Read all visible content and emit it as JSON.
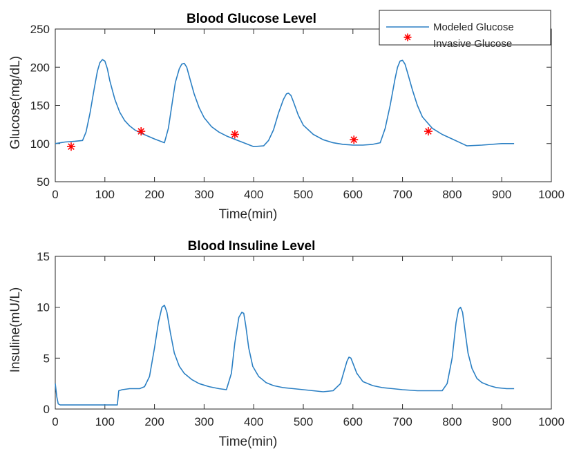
{
  "colors": {
    "model_line": "#2a7fc3",
    "marker": "#ff0000",
    "axes": "#262626"
  },
  "chart_data": [
    {
      "type": "line",
      "title": "Blood Glucose Level",
      "xlabel": "Time(min)",
      "ylabel": "Glucose(mg/dL)",
      "xlim": [
        0,
        1000
      ],
      "ylim": [
        50,
        250
      ],
      "xticks": [
        0,
        100,
        200,
        300,
        400,
        500,
        600,
        700,
        800,
        900,
        1000
      ],
      "yticks": [
        50,
        100,
        150,
        200,
        250
      ],
      "xtick_labels": [
        "0",
        "100",
        "200",
        "300",
        "400",
        "500",
        "600",
        "700",
        "800",
        "900",
        "1000"
      ],
      "ytick_labels": [
        "50",
        "100",
        "150",
        "200",
        "250"
      ],
      "grid": false,
      "legend_position": "top-right",
      "series": [
        {
          "name": "Modeled Glucose",
          "kind": "line",
          "x": [
            0,
            20,
            40,
            55,
            62,
            70,
            78,
            85,
            90,
            95,
            100,
            105,
            110,
            120,
            130,
            140,
            150,
            160,
            175,
            200,
            220,
            228,
            235,
            242,
            250,
            255,
            260,
            265,
            270,
            280,
            290,
            300,
            315,
            330,
            345,
            360,
            380,
            400,
            420,
            430,
            440,
            450,
            460,
            466,
            470,
            475,
            480,
            490,
            500,
            520,
            540,
            560,
            580,
            600,
            620,
            640,
            655,
            665,
            675,
            685,
            690,
            695,
            700,
            705,
            710,
            720,
            730,
            740,
            760,
            780,
            800,
            820,
            830,
            860,
            900,
            925
          ],
          "y": [
            100,
            102,
            103,
            104,
            115,
            140,
            170,
            195,
            206,
            210,
            208,
            198,
            182,
            158,
            141,
            130,
            123,
            118,
            113,
            106,
            101,
            120,
            150,
            180,
            198,
            204,
            205,
            200,
            188,
            165,
            147,
            134,
            122,
            115,
            110,
            106,
            101,
            96,
            97,
            104,
            118,
            140,
            158,
            165,
            166,
            163,
            155,
            137,
            124,
            112,
            105,
            101,
            99,
            98,
            98,
            99,
            101,
            120,
            150,
            185,
            200,
            208,
            209,
            204,
            193,
            170,
            150,
            135,
            120,
            112,
            106,
            100,
            97,
            98,
            100,
            100
          ]
        },
        {
          "name": "Invasive Glucose",
          "kind": "marker",
          "x": [
            32,
            173,
            362,
            602,
            752
          ],
          "y": [
            96,
            116,
            112,
            105,
            116
          ]
        }
      ]
    },
    {
      "type": "line",
      "title": "Blood Insuline Level",
      "xlabel": "Time(min)",
      "ylabel": "Insuline(mU/L)",
      "xlim": [
        0,
        1000
      ],
      "ylim": [
        0,
        15
      ],
      "xticks": [
        0,
        100,
        200,
        300,
        400,
        500,
        600,
        700,
        800,
        900,
        1000
      ],
      "yticks": [
        0,
        5,
        10,
        15
      ],
      "xtick_labels": [
        "0",
        "100",
        "200",
        "300",
        "400",
        "500",
        "600",
        "700",
        "800",
        "900",
        "1000"
      ],
      "ytick_labels": [
        "0",
        "5",
        "10",
        "15"
      ],
      "grid": false,
      "series": [
        {
          "kind": "line",
          "x": [
            0,
            3,
            6,
            10,
            50,
            100,
            125,
            128,
            135,
            150,
            170,
            180,
            190,
            200,
            208,
            215,
            220,
            225,
            232,
            240,
            250,
            260,
            275,
            290,
            310,
            330,
            345,
            355,
            362,
            370,
            376,
            380,
            384,
            390,
            398,
            410,
            425,
            440,
            460,
            480,
            500,
            520,
            540,
            560,
            575,
            582,
            588,
            592,
            596,
            600,
            608,
            620,
            640,
            660,
            680,
            700,
            730,
            760,
            780,
            790,
            800,
            808,
            813,
            817,
            821,
            825,
            832,
            840,
            850,
            860,
            875,
            890,
            910,
            925
          ],
          "y": [
            2.5,
            1.2,
            0.5,
            0.4,
            0.4,
            0.4,
            0.4,
            1.8,
            1.9,
            2.0,
            2.0,
            2.2,
            3.2,
            6.0,
            8.5,
            10.0,
            10.2,
            9.5,
            7.5,
            5.5,
            4.2,
            3.5,
            2.9,
            2.5,
            2.2,
            2.0,
            1.9,
            3.5,
            6.5,
            9.0,
            9.5,
            9.4,
            8.2,
            6.0,
            4.2,
            3.2,
            2.6,
            2.3,
            2.1,
            2.0,
            1.9,
            1.8,
            1.7,
            1.8,
            2.5,
            3.7,
            4.7,
            5.1,
            5.0,
            4.5,
            3.5,
            2.7,
            2.3,
            2.1,
            2.0,
            1.9,
            1.8,
            1.8,
            1.8,
            2.5,
            5.0,
            8.5,
            9.8,
            10.0,
            9.5,
            8.0,
            5.5,
            4.0,
            3.0,
            2.6,
            2.3,
            2.1,
            2.0,
            2.0
          ]
        }
      ]
    }
  ]
}
